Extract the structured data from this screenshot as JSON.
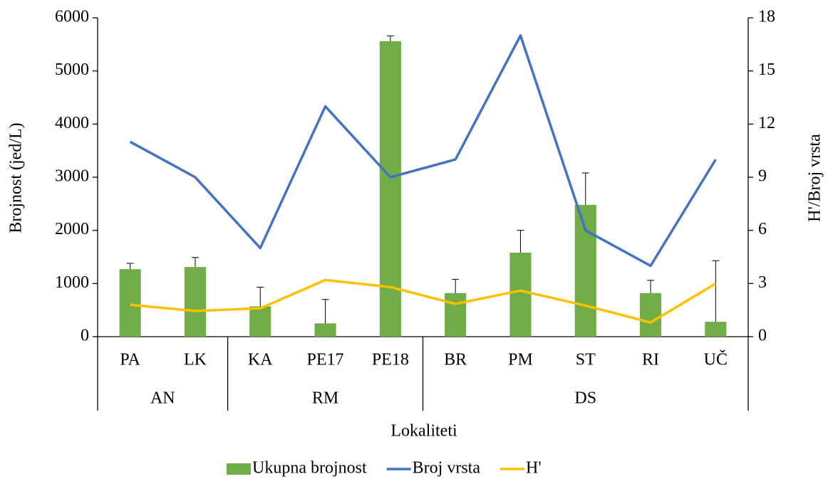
{
  "chart_data": {
    "type": "bar_line",
    "x_label": "Lokaliteti",
    "y_label": "Brojnost (jed/L)",
    "y2_label": "H'/Broj vrsta",
    "categories": [
      "PA",
      "LK",
      "KA",
      "PE17",
      "PE18",
      "BR",
      "PM",
      "ST",
      "RI",
      "UČ"
    ],
    "category_groups": [
      "AN",
      null,
      "RM",
      null,
      null,
      "DS",
      null,
      null,
      null,
      null
    ],
    "ylim": [
      0,
      6000
    ],
    "yticks": [
      0,
      1000,
      2000,
      3000,
      4000,
      5000,
      6000
    ],
    "y2lim": [
      0,
      18
    ],
    "y2ticks": [
      0,
      3,
      6,
      9,
      12,
      15,
      18
    ],
    "series": [
      {
        "name": "Ukupna brojnost",
        "type": "bar",
        "color": "#70ad47",
        "values": [
          1270,
          1310,
          570,
          250,
          5560,
          820,
          1580,
          2480,
          820,
          280
        ],
        "errors": [
          110,
          180,
          360,
          450,
          100,
          260,
          420,
          600,
          240,
          1150
        ]
      },
      {
        "name": "Broj vrsta",
        "type": "line",
        "axis": "y2",
        "color": "#4472c4",
        "values": [
          11,
          9,
          5,
          13,
          9,
          10,
          17,
          6,
          4,
          10
        ]
      },
      {
        "name": "H'",
        "type": "line",
        "axis": "y2",
        "color": "#ffc000",
        "values": [
          1.8,
          1.45,
          1.6,
          3.2,
          2.8,
          1.85,
          2.6,
          1.75,
          0.8,
          3.0
        ]
      }
    ]
  }
}
